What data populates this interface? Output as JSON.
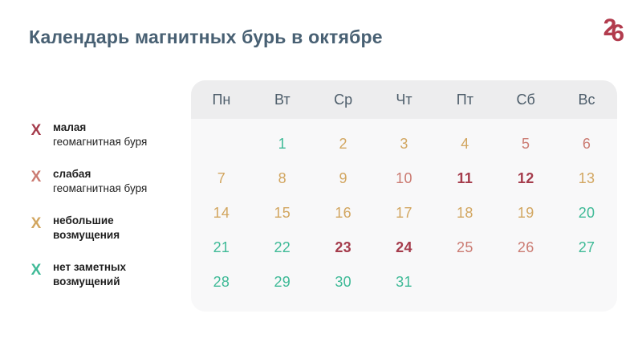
{
  "title": "Календарь магнитных бурь в октябре",
  "logo": {
    "char1": "2",
    "char2": "6"
  },
  "colors": {
    "minor": "#a53c4c",
    "weak": "#cb7b72",
    "small": "#d2a660",
    "none": "#3fba97",
    "logo": "#b23c4e",
    "title_text": "#486073",
    "day_header_text": "#4d5d6a",
    "panel_bg": "#f8f8f9",
    "panel_header_bg": "#ededee",
    "legend_text": "#1f1f1f"
  },
  "legend": {
    "marker": "Х",
    "items": [
      {
        "line1": "малая",
        "line2": "геомагнитная буря",
        "line2_bold": false,
        "level": "minor"
      },
      {
        "line1": "слабая",
        "line2": "геомагнитная буря",
        "line2_bold": false,
        "level": "weak"
      },
      {
        "line1": "небольшие",
        "line2": "возмущения",
        "line2_bold": true,
        "level": "small"
      },
      {
        "line1": "нет заметных",
        "line2": "возмущений",
        "line2_bold": true,
        "level": "none"
      }
    ]
  },
  "calendar": {
    "day_headers": [
      "Пн",
      "Вт",
      "Ср",
      "Чт",
      "Пт",
      "Сб",
      "Вс"
    ],
    "weeks": [
      [
        null,
        {
          "d": "1",
          "lv": "none"
        },
        {
          "d": "2",
          "lv": "small"
        },
        {
          "d": "3",
          "lv": "small"
        },
        {
          "d": "4",
          "lv": "small"
        },
        {
          "d": "5",
          "lv": "weak"
        },
        {
          "d": "6",
          "lv": "weak"
        }
      ],
      [
        {
          "d": "7",
          "lv": "small"
        },
        {
          "d": "8",
          "lv": "small"
        },
        {
          "d": "9",
          "lv": "small"
        },
        {
          "d": "10",
          "lv": "weak"
        },
        {
          "d": "11",
          "lv": "minor"
        },
        {
          "d": "12",
          "lv": "minor"
        },
        {
          "d": "13",
          "lv": "small"
        }
      ],
      [
        {
          "d": "14",
          "lv": "small"
        },
        {
          "d": "15",
          "lv": "small"
        },
        {
          "d": "16",
          "lv": "small"
        },
        {
          "d": "17",
          "lv": "small"
        },
        {
          "d": "18",
          "lv": "small"
        },
        {
          "d": "19",
          "lv": "small"
        },
        {
          "d": "20",
          "lv": "none"
        }
      ],
      [
        {
          "d": "21",
          "lv": "none"
        },
        {
          "d": "22",
          "lv": "none"
        },
        {
          "d": "23",
          "lv": "minor"
        },
        {
          "d": "24",
          "lv": "minor"
        },
        {
          "d": "25",
          "lv": "weak"
        },
        {
          "d": "26",
          "lv": "weak"
        },
        {
          "d": "27",
          "lv": "none"
        }
      ],
      [
        {
          "d": "28",
          "lv": "none"
        },
        {
          "d": "29",
          "lv": "none"
        },
        {
          "d": "30",
          "lv": "none"
        },
        {
          "d": "31",
          "lv": "none"
        },
        null,
        null,
        null
      ]
    ]
  },
  "chart_data": {
    "type": "heatmap",
    "title": "Календарь магнитных бурь в октябре",
    "categories": [
      "Пн",
      "Вт",
      "Ср",
      "Чт",
      "Пт",
      "Сб",
      "Вс"
    ],
    "legend": [
      "малая геомагнитная буря",
      "слабая геомагнитная буря",
      "небольшие возмущения",
      "нет заметных возмущений"
    ],
    "day_levels": {
      "малая геомагнитная буря": [
        11,
        12,
        23,
        24
      ],
      "слабая геомагнитная буря": [
        5,
        6,
        10,
        25,
        26
      ],
      "небольшие возмущения": [
        2,
        3,
        4,
        7,
        8,
        9,
        13,
        14,
        15,
        16,
        17,
        18,
        19
      ],
      "нет заметных возмущений": [
        1,
        20,
        21,
        22,
        27,
        28,
        29,
        30,
        31
      ]
    }
  }
}
